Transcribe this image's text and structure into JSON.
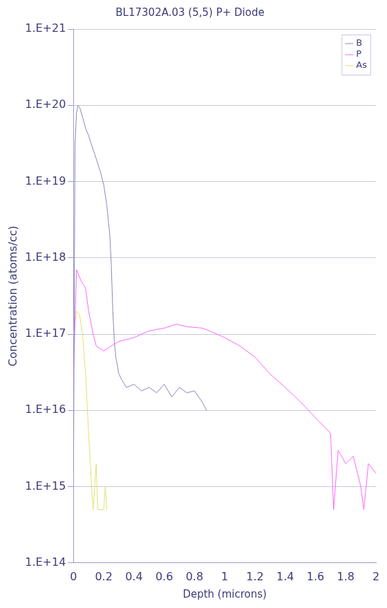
{
  "chart_data": {
    "type": "line",
    "title": "BL17302A.03 (5,5) P+ Diode",
    "x_label": "Depth (microns)",
    "y_label": "Concentration (atoms/cc)",
    "log": "y",
    "grid": "y",
    "legend": "top-right",
    "xlim": [
      0,
      2
    ],
    "xticks": [
      0,
      0.2,
      0.4,
      0.6,
      0.8,
      1,
      1.2,
      1.4,
      1.6,
      1.8,
      2
    ],
    "ylim": [
      100000000000000.0,
      1e+21
    ],
    "yticks": [
      {
        "value": 100000000000000.0,
        "label": "1.E+14"
      },
      {
        "value": 1000000000000000.0,
        "label": "1.E+15"
      },
      {
        "value": 1e+16,
        "label": "1.E+16"
      },
      {
        "value": 1e+17,
        "label": "1.E+17"
      },
      {
        "value": 1e+18,
        "label": "1.E+18"
      },
      {
        "value": 1e+19,
        "label": "1.E+19"
      },
      {
        "value": 1e+20,
        "label": "1.E+20"
      },
      {
        "value": 1e+21,
        "label": "1.E+21"
      }
    ],
    "series": [
      {
        "name": "B",
        "color": "#8888b8",
        "x": [
          0,
          0.01,
          0.02,
          0.03,
          0.04,
          0.06,
          0.08,
          0.1,
          0.12,
          0.15,
          0.18,
          0.2,
          0.22,
          0.24,
          0.25,
          0.26,
          0.27,
          0.28,
          0.3,
          0.32,
          0.35,
          0.4,
          0.45,
          0.5,
          0.55,
          0.6,
          0.65,
          0.7,
          0.75,
          0.8,
          0.85,
          0.88
        ],
        "values": [
          1500000000000000.0,
          3e+19,
          8e+19,
          1e+20,
          9.5e+19,
          7e+19,
          5e+19,
          4e+19,
          3e+19,
          2e+19,
          1.3e+19,
          9e+18,
          5e+18,
          2e+18,
          8e+17,
          2e+17,
          8e+16,
          5e+16,
          3e+16,
          2.5e+16,
          2e+16,
          2.2e+16,
          1.8e+16,
          2e+16,
          1.7e+16,
          2.2e+16,
          1.5e+16,
          2e+16,
          1.7e+16,
          1.8e+16,
          1.3e+16,
          1e+16
        ]
      },
      {
        "name": "P",
        "color": "#ff66ff",
        "x": [
          0,
          0.02,
          0.05,
          0.08,
          0.1,
          0.13,
          0.15,
          0.2,
          0.25,
          0.3,
          0.4,
          0.45,
          0.5,
          0.6,
          0.68,
          0.75,
          0.85,
          0.9,
          1,
          1.1,
          1.2,
          1.3,
          1.4,
          1.5,
          1.6,
          1.7,
          1.72,
          1.75,
          1.8,
          1.85,
          1.9,
          1.92,
          1.95,
          2
        ],
        "values": [
          3e+16,
          7e+17,
          5e+17,
          4e+17,
          2e+17,
          1e+17,
          7e+16,
          6e+16,
          7e+16,
          8e+16,
          9e+16,
          1e+17,
          1.1e+17,
          1.2e+17,
          1.35e+17,
          1.25e+17,
          1.2e+17,
          1.1e+17,
          9e+16,
          7e+16,
          5e+16,
          3e+16,
          2e+16,
          1.3e+16,
          8000000000000000.0,
          5000000000000000.0,
          500000000000000.0,
          3000000000000000.0,
          2000000000000000.0,
          2500000000000000.0,
          1000000000000000.0,
          500000000000000.0,
          2000000000000000.0,
          1500000000000000.0
        ]
      },
      {
        "name": "As",
        "color": "#e6e070",
        "x": [
          0,
          0.02,
          0.04,
          0.06,
          0.08,
          0.1,
          0.12,
          0.13,
          0.15,
          0.16,
          0.2,
          0.21,
          0.22
        ],
        "values": [
          1e+17,
          2e+17,
          1.8e+17,
          1e+17,
          3e+16,
          5000000000000000.0,
          1000000000000000.0,
          500000000000000.0,
          2000000000000000.0,
          500000000000000.0,
          500000000000000.0,
          1000000000000000.0,
          500000000000000.0
        ]
      }
    ]
  }
}
